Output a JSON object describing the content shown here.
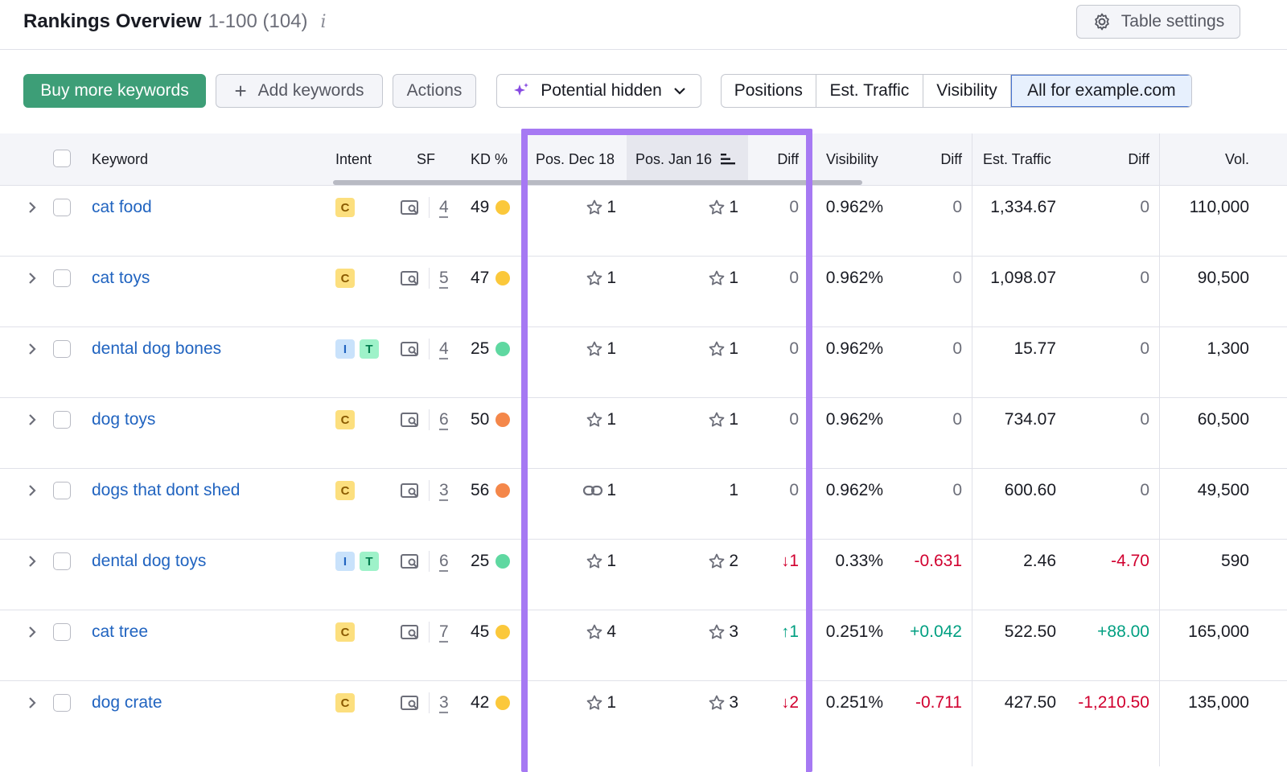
{
  "header": {
    "title": "Rankings Overview",
    "range": "1-100 (104)",
    "info": "i",
    "table_settings": "Table settings"
  },
  "toolbar": {
    "buy_more": "Buy more keywords",
    "add_keywords": "Add keywords",
    "actions": "Actions",
    "potential_hidden": "Potential hidden",
    "segments": [
      "Positions",
      "Est. Traffic",
      "Visibility",
      "All for example.com"
    ]
  },
  "columns": {
    "keyword": "Keyword",
    "intent": "Intent",
    "sf": "SF",
    "kd": "KD %",
    "pos_dec": "Pos. Dec 18",
    "pos_jan": "Pos. Jan 16",
    "diff": "Diff",
    "visibility": "Visibility",
    "vis_diff": "Diff",
    "traffic": "Est. Traffic",
    "traffic_diff": "Diff",
    "vol": "Vol."
  },
  "colors": {
    "kd_yellow": "#fbc83b",
    "kd_orange": "#f4874a",
    "kd_green": "#5fd8a1",
    "highlight_purple": "#a679f3"
  },
  "rows": [
    {
      "keyword": "cat food",
      "intents": [
        "C"
      ],
      "sf": "4",
      "kd": "49",
      "kd_color": "#fbc83b",
      "pos_dec_icon": "star",
      "pos_dec": "1",
      "pos_jan_icon": "star",
      "pos_jan": "1",
      "diff": "0",
      "diff_dir": "none",
      "visibility": "0.962%",
      "vis_diff": "0",
      "vis_dir": "none",
      "traffic": "1,334.67",
      "traffic_diff": "0",
      "traffic_dir": "none",
      "vol": "110,000"
    },
    {
      "keyword": "cat toys",
      "intents": [
        "C"
      ],
      "sf": "5",
      "kd": "47",
      "kd_color": "#fbc83b",
      "pos_dec_icon": "star",
      "pos_dec": "1",
      "pos_jan_icon": "star",
      "pos_jan": "1",
      "diff": "0",
      "diff_dir": "none",
      "visibility": "0.962%",
      "vis_diff": "0",
      "vis_dir": "none",
      "traffic": "1,098.07",
      "traffic_diff": "0",
      "traffic_dir": "none",
      "vol": "90,500"
    },
    {
      "keyword": "dental dog bones",
      "intents": [
        "I",
        "T"
      ],
      "sf": "4",
      "kd": "25",
      "kd_color": "#5fd8a1",
      "pos_dec_icon": "star",
      "pos_dec": "1",
      "pos_jan_icon": "star",
      "pos_jan": "1",
      "diff": "0",
      "diff_dir": "none",
      "visibility": "0.962%",
      "vis_diff": "0",
      "vis_dir": "none",
      "traffic": "15.77",
      "traffic_diff": "0",
      "traffic_dir": "none",
      "vol": "1,300"
    },
    {
      "keyword": "dog toys",
      "intents": [
        "C"
      ],
      "sf": "6",
      "kd": "50",
      "kd_color": "#f4874a",
      "pos_dec_icon": "star",
      "pos_dec": "1",
      "pos_jan_icon": "star",
      "pos_jan": "1",
      "diff": "0",
      "diff_dir": "none",
      "visibility": "0.962%",
      "vis_diff": "0",
      "vis_dir": "none",
      "traffic": "734.07",
      "traffic_diff": "0",
      "traffic_dir": "none",
      "vol": "60,500"
    },
    {
      "keyword": "dogs that dont shed",
      "intents": [
        "C"
      ],
      "sf": "3",
      "kd": "56",
      "kd_color": "#f4874a",
      "pos_dec_icon": "link",
      "pos_dec": "1",
      "pos_jan_icon": "none",
      "pos_jan": "1",
      "diff": "0",
      "diff_dir": "none",
      "visibility": "0.962%",
      "vis_diff": "0",
      "vis_dir": "none",
      "traffic": "600.60",
      "traffic_diff": "0",
      "traffic_dir": "none",
      "vol": "49,500"
    },
    {
      "keyword": "dental dog toys",
      "intents": [
        "I",
        "T"
      ],
      "sf": "6",
      "kd": "25",
      "kd_color": "#5fd8a1",
      "pos_dec_icon": "star",
      "pos_dec": "1",
      "pos_jan_icon": "star",
      "pos_jan": "2",
      "diff": "1",
      "diff_dir": "down",
      "visibility": "0.33%",
      "vis_diff": "-0.631",
      "vis_dir": "neg",
      "traffic": "2.46",
      "traffic_diff": "-4.70",
      "traffic_dir": "neg",
      "vol": "590"
    },
    {
      "keyword": "cat tree",
      "intents": [
        "C"
      ],
      "sf": "7",
      "kd": "45",
      "kd_color": "#fbc83b",
      "pos_dec_icon": "star",
      "pos_dec": "4",
      "pos_jan_icon": "star",
      "pos_jan": "3",
      "diff": "1",
      "diff_dir": "up",
      "visibility": "0.251%",
      "vis_diff": "+0.042",
      "vis_dir": "pos",
      "traffic": "522.50",
      "traffic_diff": "+88.00",
      "traffic_dir": "pos",
      "vol": "165,000"
    },
    {
      "keyword": "dog crate",
      "intents": [
        "C"
      ],
      "sf": "3",
      "kd": "42",
      "kd_color": "#fbc83b",
      "pos_dec_icon": "star",
      "pos_dec": "1",
      "pos_jan_icon": "star",
      "pos_jan": "3",
      "diff": "2",
      "diff_dir": "down",
      "visibility": "0.251%",
      "vis_diff": "-0.711",
      "vis_dir": "neg",
      "traffic": "427.50",
      "traffic_diff": "-1,210.50",
      "traffic_dir": "neg",
      "vol": "135,000"
    }
  ]
}
